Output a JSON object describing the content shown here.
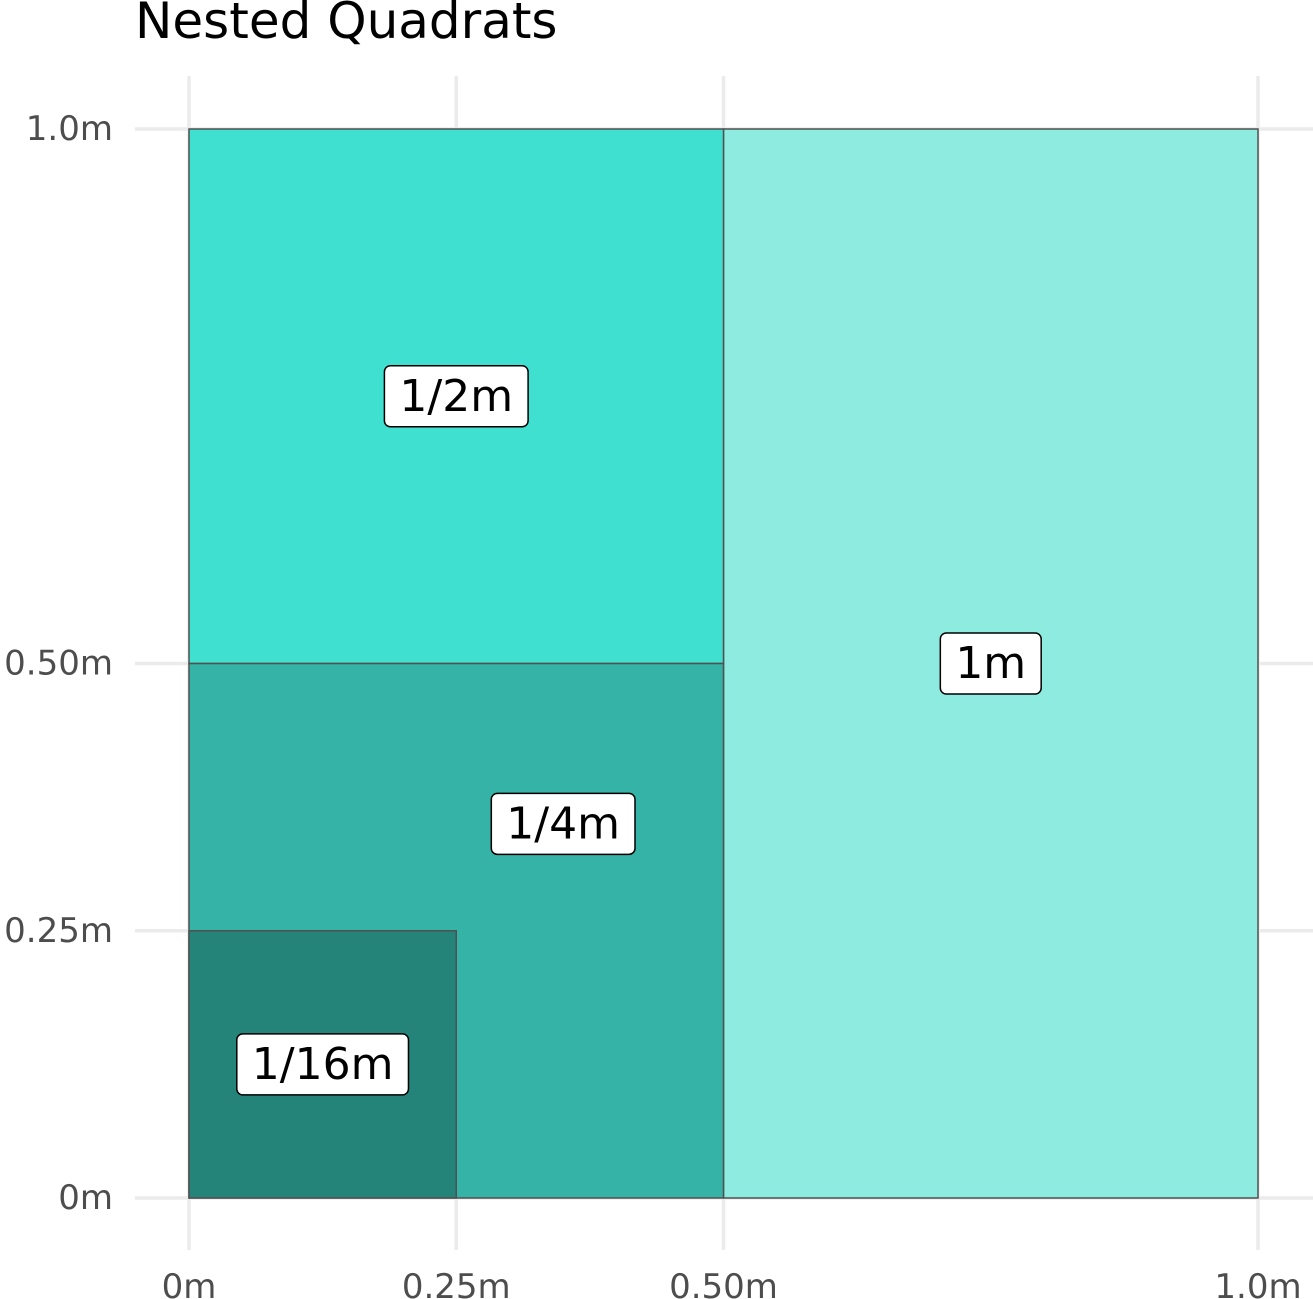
{
  "chart_data": {
    "type": "nested-rectangles",
    "title": "Nested Quadrats",
    "xlabel": "",
    "ylabel": "",
    "xlim": [
      0,
      1.0
    ],
    "ylim": [
      0,
      1.0
    ],
    "grid": true,
    "x_ticks": [
      {
        "value": 0,
        "label": "0m"
      },
      {
        "value": 0.25,
        "label": "0.25m"
      },
      {
        "value": 0.5,
        "label": "0.50m"
      },
      {
        "value": 1.0,
        "label": "1.0m"
      }
    ],
    "y_ticks": [
      {
        "value": 0,
        "label": "0m"
      },
      {
        "value": 0.25,
        "label": "0.25m"
      },
      {
        "value": 0.5,
        "label": "0.50m"
      },
      {
        "value": 1.0,
        "label": "1.0m"
      }
    ],
    "quadrats": [
      {
        "label": "1m",
        "xmin": 0.5,
        "xmax": 1.0,
        "ymin": 0,
        "ymax": 1.0,
        "color": "#8eebe0",
        "label_x": 0.75,
        "label_y": 0.5
      },
      {
        "label": "1/2m",
        "xmin": 0,
        "xmax": 0.5,
        "ymin": 0.5,
        "ymax": 1.0,
        "color": "#40e0d0",
        "label_x": 0.25,
        "label_y": 0.75
      },
      {
        "label": "1/4m",
        "xmin": 0,
        "xmax": 0.5,
        "ymin": 0,
        "ymax": 0.5,
        "color": "#34b3a6",
        "label_x": 0.35,
        "label_y": 0.35
      },
      {
        "label": "1/16m",
        "xmin": 0,
        "xmax": 0.25,
        "ymin": 0,
        "ymax": 0.25,
        "color": "#24847a",
        "label_x": 0.125,
        "label_y": 0.125
      }
    ]
  }
}
